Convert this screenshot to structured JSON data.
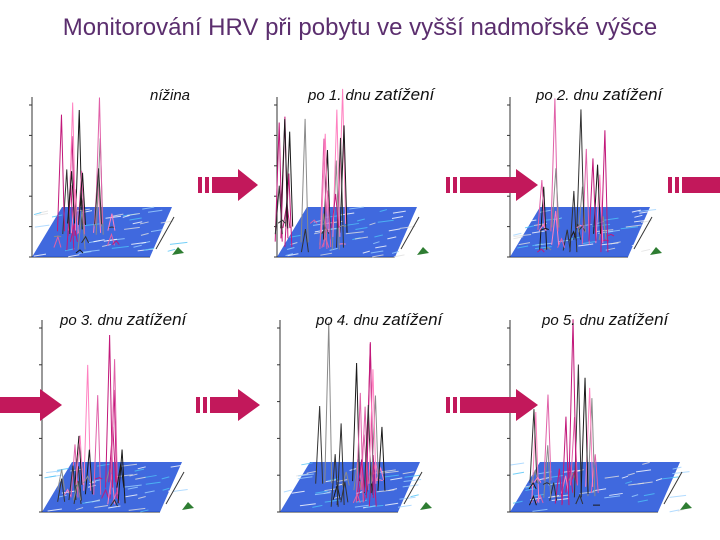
{
  "title": "Monitorování HRV při pobytu ve vyšší nadmořské výšce",
  "panels": [
    {
      "label_a": "nížina",
      "label_b": ""
    },
    {
      "label_a": "po 1. dnu ",
      "label_b": "zatížení"
    },
    {
      "label_a": "po 2. dnu ",
      "label_b": "zatížení"
    },
    {
      "label_a": "po 3. dnu ",
      "label_b": "zatížení"
    },
    {
      "label_a": "po 4. dnu ",
      "label_b": "zatížení"
    },
    {
      "label_a": "po 5. dnu ",
      "label_b": "zatížení"
    }
  ],
  "colors": {
    "title": "#5b2e6e",
    "arrow": "#c2185b",
    "surface_base": "#1e4fd8",
    "peak_magenta": "#c2187a"
  }
}
